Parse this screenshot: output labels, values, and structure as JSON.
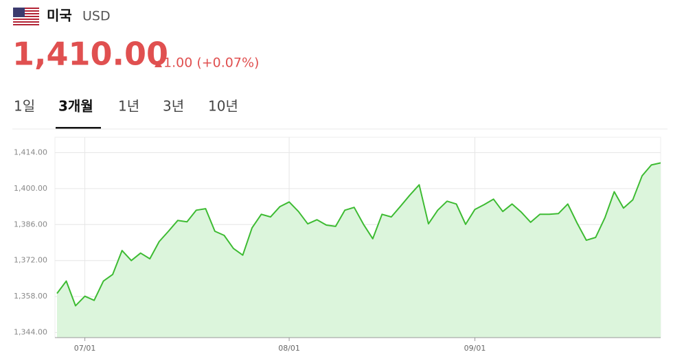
{
  "header": {
    "country": "미국",
    "currency": "USD",
    "price": "1,410.00",
    "change": "1.00 (+0.07%)"
  },
  "tabs": [
    "1일",
    "3개월",
    "1년",
    "3년",
    "10년"
  ],
  "active_tab": 1,
  "chart_data": {
    "type": "area",
    "categories": [
      null,
      null,
      null,
      "07/01",
      null,
      null,
      null,
      null,
      null,
      null,
      null,
      null,
      null,
      null,
      null,
      null,
      null,
      null,
      null,
      null,
      null,
      null,
      null,
      null,
      null,
      "08/01",
      null,
      null,
      null,
      null,
      null,
      null,
      null,
      null,
      null,
      null,
      null,
      null,
      null,
      null,
      null,
      null,
      null,
      null,
      null,
      "09/01",
      null,
      null,
      null,
      null,
      null,
      null,
      null,
      null,
      null,
      null,
      null,
      null,
      null,
      null,
      null,
      null,
      null,
      null,
      null,
      null
    ],
    "values": [
      1359.2,
      1364.0,
      1354.4,
      1358.1,
      1356.5,
      1364.0,
      1366.6,
      1375.9,
      1372.0,
      1374.9,
      1372.7,
      1379.4,
      1383.4,
      1387.6,
      1387.1,
      1391.6,
      1392.2,
      1383.4,
      1381.8,
      1376.7,
      1374.1,
      1384.7,
      1390.0,
      1389.0,
      1393.0,
      1394.8,
      1391.1,
      1386.3,
      1387.9,
      1385.8,
      1385.3,
      1391.6,
      1392.7,
      1386.1,
      1380.5,
      1390.0,
      1389.0,
      1393.2,
      1397.5,
      1401.5,
      1386.3,
      1391.6,
      1395.1,
      1394.0,
      1386.1,
      1391.9,
      1393.8,
      1395.9,
      1391.1,
      1394.0,
      1390.8,
      1386.9,
      1390.0,
      1390.0,
      1390.3,
      1394.0,
      1386.6,
      1379.9,
      1381.0,
      1388.7,
      1398.8,
      1392.4,
      1395.6,
      1405.0,
      1409.2,
      1410.0
    ],
    "color": "#3dbb32",
    "fill": "#dcf5dc",
    "ylim": [
      1342,
      1420
    ],
    "yticks": [
      {
        "value": 1344,
        "label": "1,344.00"
      },
      {
        "value": 1358,
        "label": "1,358.00"
      },
      {
        "value": 1372,
        "label": "1,372.00"
      },
      {
        "value": 1386,
        "label": "1,386.00"
      },
      {
        "value": 1400,
        "label": "1,400.00"
      },
      {
        "value": 1414,
        "label": "1,414.00"
      }
    ],
    "grid": true
  }
}
